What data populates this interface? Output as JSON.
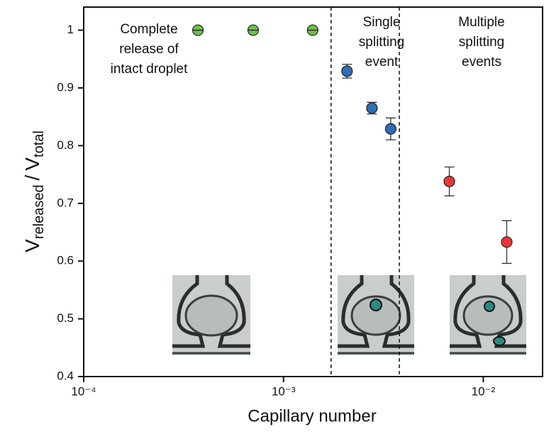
{
  "chart_data": {
    "type": "scatter",
    "xlabel": "Capillary number",
    "ylabel": {
      "main": "V",
      "sub": "released",
      "sep": "/",
      "main2": "V",
      "sub2": "total"
    },
    "xscale": "log",
    "xlim": [
      0.0001,
      0.0198
    ],
    "xticks": [
      {
        "value": 0.0001,
        "label": "10⁻⁴"
      },
      {
        "value": 0.001,
        "label": "10⁻³"
      },
      {
        "value": 0.01,
        "label": "10⁻²"
      }
    ],
    "ylim": [
      0.4,
      1.04
    ],
    "yticks": [
      0.4,
      0.5,
      0.6,
      0.7,
      0.8,
      0.9,
      1
    ],
    "vlines": [
      0.00173,
      0.0038
    ],
    "series": [
      {
        "color": "#6cc04a",
        "x": [
          0.000373,
          0.000705,
          0.0014
        ],
        "values": [
          1,
          1,
          1
        ],
        "errors": [
          0,
          0,
          0
        ]
      },
      {
        "color": "#2f6db5",
        "x": [
          0.00208,
          0.00277,
          0.00344
        ],
        "values": [
          0.929,
          0.865,
          0.829
        ],
        "errors": [
          0.012,
          0.01,
          0.019
        ]
      },
      {
        "color": "#e8373a",
        "x": [
          0.00676,
          0.0131
        ],
        "values": [
          0.738,
          0.633
        ],
        "errors": [
          0.025,
          0.037
        ]
      }
    ],
    "annotations": [
      {
        "lines": [
          "Complete",
          "release of",
          "intact droplet"
        ]
      },
      {
        "lines": [
          "Single",
          "splitting",
          "event"
        ]
      },
      {
        "lines": [
          "Multiple",
          "splitting",
          "events"
        ]
      }
    ]
  }
}
